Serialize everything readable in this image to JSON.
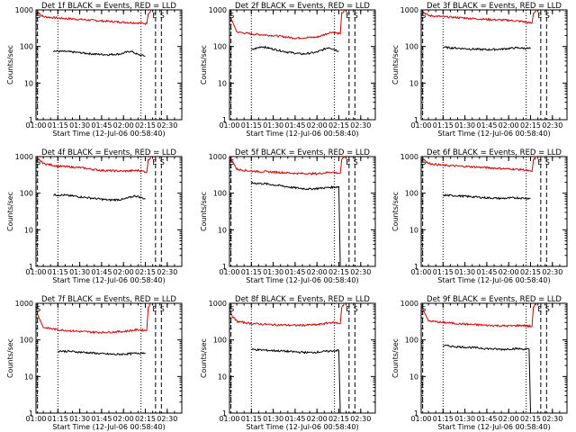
{
  "chart_data": {
    "type": "line",
    "y_scale": "log",
    "ylim": [
      1,
      1000
    ],
    "y_tick_labels": [
      "1",
      "10",
      "100",
      "1000"
    ],
    "ylabel": "Counts/sec",
    "x_range": [
      "01:00",
      "02:40"
    ],
    "x_tick_labels": [
      "01:00",
      "01:15",
      "01:30",
      "01:45",
      "02:00",
      "02:15",
      "02:30"
    ],
    "xlabel": "Start Time (12-Jul-06 00:58:40)",
    "colors": {
      "events": "#000000",
      "lld": "#dd0000"
    },
    "markers": {
      "start": "S",
      "end": "E"
    },
    "panels": [
      {
        "title": "Det 1f BLACK = Events, RED = LLD",
        "events": {
          "x": [
            "01:12",
            "01:20",
            "01:30",
            "01:40",
            "01:50",
            "01:58",
            "02:05",
            "02:10",
            "02:15"
          ],
          "y": [
            75,
            73,
            68,
            62,
            60,
            63,
            75,
            60,
            55
          ]
        },
        "lld": {
          "x": [
            "01:01",
            "01:05",
            "01:15",
            "01:30",
            "01:45",
            "02:00",
            "02:10",
            "02:16",
            "02:17",
            "02:19"
          ],
          "y": [
            900,
            650,
            600,
            550,
            500,
            460,
            440,
            420,
            800,
            1000
          ]
        },
        "end_line": true
      },
      {
        "title": "Det 2f BLACK = Events, RED = LLD",
        "events": {
          "x": [
            "01:15",
            "01:22",
            "01:30",
            "01:40",
            "01:50",
            "02:00",
            "02:08",
            "02:15"
          ],
          "y": [
            80,
            100,
            85,
            70,
            62,
            70,
            95,
            75
          ]
        },
        "lld": {
          "x": [
            "01:01",
            "01:05",
            "01:15",
            "01:30",
            "01:45",
            "02:00",
            "02:10",
            "02:16",
            "02:17",
            "02:19"
          ],
          "y": [
            600,
            250,
            220,
            200,
            170,
            180,
            250,
            220,
            800,
            1000
          ]
        },
        "end_line": true
      },
      {
        "title": "Det 3f BLACK = Events, RED = LLD",
        "events": {
          "x": [
            "01:15",
            "01:25",
            "01:35",
            "01:45",
            "01:55",
            "02:05",
            "02:15"
          ],
          "y": [
            95,
            90,
            85,
            82,
            85,
            92,
            88
          ]
        },
        "lld": {
          "x": [
            "01:01",
            "01:05",
            "01:15",
            "01:30",
            "01:45",
            "02:00",
            "02:10",
            "02:16",
            "02:17",
            "02:19"
          ],
          "y": [
            900,
            700,
            650,
            600,
            550,
            520,
            480,
            430,
            800,
            1000
          ]
        },
        "end_line": true
      },
      {
        "title": "Det 4f BLACK = Events, RED = LLD",
        "events": {
          "x": [
            "01:12",
            "01:20",
            "01:30",
            "01:40",
            "01:50",
            "02:00",
            "02:08",
            "02:15"
          ],
          "y": [
            90,
            88,
            80,
            72,
            65,
            68,
            85,
            70
          ]
        },
        "lld": {
          "x": [
            "01:01",
            "01:05",
            "01:15",
            "01:30",
            "01:45",
            "02:00",
            "02:10",
            "02:16",
            "02:17",
            "02:19"
          ],
          "y": [
            900,
            650,
            550,
            500,
            420,
            400,
            420,
            380,
            800,
            1000
          ]
        },
        "end_line": true
      },
      {
        "title": "Det 5f BLACK = Events, RED = LLD",
        "events": {
          "x": [
            "01:15",
            "01:25",
            "01:35",
            "01:45",
            "01:55",
            "02:05",
            "02:15",
            "02:16"
          ],
          "y": [
            190,
            180,
            160,
            140,
            130,
            140,
            150,
            1
          ]
        },
        "lld": {
          "x": [
            "01:01",
            "01:05",
            "01:15",
            "01:30",
            "01:45",
            "02:00",
            "02:10",
            "02:16",
            "02:17",
            "02:19"
          ],
          "y": [
            900,
            450,
            400,
            380,
            350,
            340,
            380,
            350,
            800,
            1000
          ]
        },
        "end_line": false
      },
      {
        "title": "Det 6f BLACK = Events, RED = LLD",
        "events": {
          "x": [
            "01:15",
            "01:25",
            "01:35",
            "01:45",
            "01:55",
            "02:05",
            "02:15"
          ],
          "y": [
            88,
            85,
            80,
            75,
            72,
            75,
            72
          ]
        },
        "lld": {
          "x": [
            "01:01",
            "01:05",
            "01:15",
            "01:30",
            "01:45",
            "02:00",
            "02:10",
            "02:16",
            "02:17",
            "02:19"
          ],
          "y": [
            900,
            650,
            580,
            540,
            500,
            460,
            440,
            390,
            800,
            1000
          ]
        },
        "end_line": true
      },
      {
        "title": "Det 7f BLACK = Events, RED = LLD",
        "events": {
          "x": [
            "01:15",
            "01:25",
            "01:35",
            "01:45",
            "01:55",
            "02:05",
            "02:15"
          ],
          "y": [
            50,
            48,
            45,
            42,
            40,
            42,
            45
          ]
        },
        "lld": {
          "x": [
            "01:01",
            "01:05",
            "01:15",
            "01:30",
            "01:45",
            "02:00",
            "02:10",
            "02:16",
            "02:17",
            "02:19"
          ],
          "y": [
            500,
            220,
            190,
            170,
            160,
            170,
            190,
            180,
            800,
            1000
          ]
        },
        "end_line": true
      },
      {
        "title": "Det 8f BLACK = Events, RED = LLD",
        "events": {
          "x": [
            "01:15",
            "01:25",
            "01:35",
            "01:45",
            "01:55",
            "02:05",
            "02:15",
            "02:16"
          ],
          "y": [
            55,
            52,
            50,
            47,
            45,
            48,
            52,
            1
          ]
        },
        "lld": {
          "x": [
            "01:01",
            "01:05",
            "01:15",
            "01:30",
            "01:45",
            "02:00",
            "02:10",
            "02:16",
            "02:17",
            "02:19"
          ],
          "y": [
            500,
            320,
            280,
            260,
            250,
            260,
            300,
            280,
            800,
            1000
          ]
        },
        "end_line": false
      },
      {
        "title": "Det 9f BLACK = Events, RED = LLD",
        "events": {
          "x": [
            "01:15",
            "01:25",
            "01:35",
            "01:45",
            "01:55",
            "02:05",
            "02:14",
            "02:15"
          ],
          "y": [
            70,
            65,
            62,
            58,
            55,
            58,
            55,
            1
          ]
        },
        "lld": {
          "x": [
            "01:01",
            "01:05",
            "01:15",
            "01:30",
            "01:45",
            "02:00",
            "02:10",
            "02:16",
            "02:17",
            "02:19"
          ],
          "y": [
            700,
            330,
            300,
            270,
            250,
            240,
            250,
            230,
            800,
            1000
          ]
        },
        "end_line": false
      }
    ],
    "vlines": {
      "dotted": [
        "01:15",
        "02:12"
      ],
      "dashed": [
        "01:01",
        "02:22",
        "02:26"
      ]
    }
  }
}
